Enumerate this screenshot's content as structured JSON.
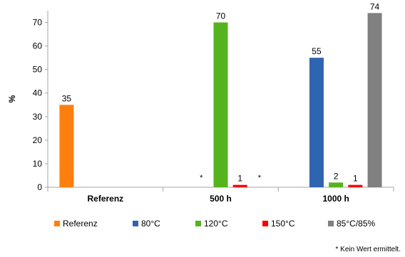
{
  "chart_data": {
    "type": "bar",
    "ylabel": "%",
    "ylim": [
      0,
      75
    ],
    "y_ticks": [
      0,
      10,
      20,
      30,
      40,
      50,
      60,
      70
    ],
    "grid": false,
    "legend_position": "bottom",
    "categories": [
      "Referenz",
      "500 h",
      "1000 h"
    ],
    "series": [
      {
        "name": "Referenz",
        "color": "#ff7f0e",
        "values": [
          35,
          null,
          null
        ]
      },
      {
        "name": "80°C",
        "color": "#2f64b0",
        "values": [
          null,
          null,
          55
        ]
      },
      {
        "name": "120°C",
        "color": "#55b41e",
        "values": [
          null,
          70,
          2
        ]
      },
      {
        "name": "150°C",
        "color": "#ff0000",
        "values": [
          null,
          1,
          1
        ]
      },
      {
        "name": "85°C/85%",
        "color": "#808080",
        "values": [
          null,
          null,
          74
        ]
      }
    ],
    "missing_marks": [
      {
        "category": "500 h",
        "series": "80°C",
        "text": "*"
      },
      {
        "category": "500 h",
        "series": "85°C/85%",
        "text": "*"
      }
    ],
    "footnote": "* Kein Wert ermittelt."
  }
}
